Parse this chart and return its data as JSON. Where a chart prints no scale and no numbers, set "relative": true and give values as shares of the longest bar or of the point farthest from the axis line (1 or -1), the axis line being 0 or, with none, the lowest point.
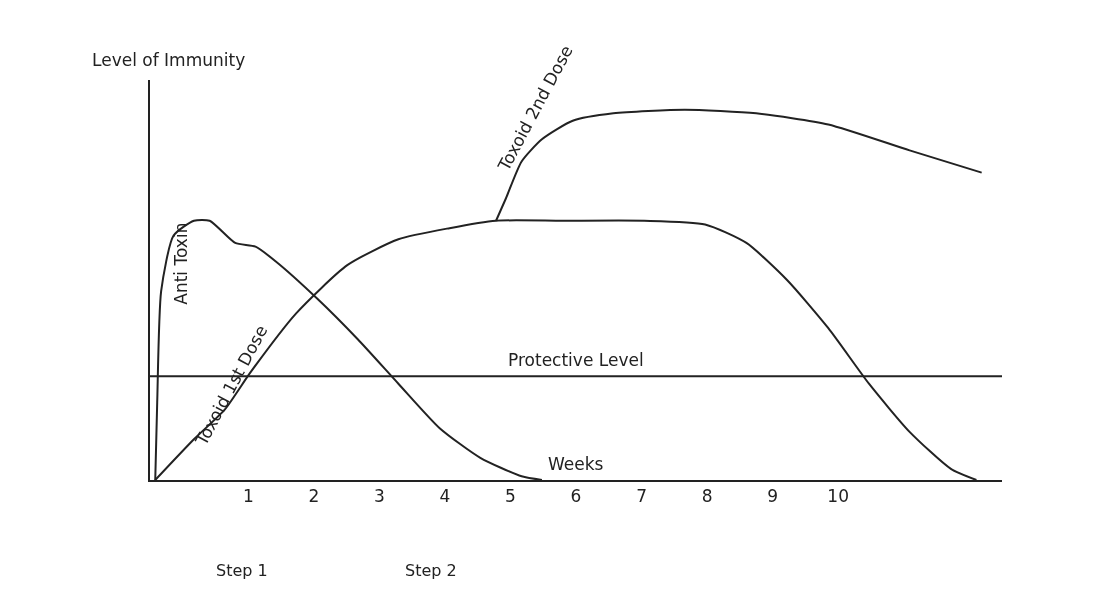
{
  "chart_data": {
    "type": "line",
    "relative": true,
    "xlabel": "Weeks",
    "ylabel": "Level of Immunity",
    "xlim": [
      -0.5,
      12.5
    ],
    "xticks": [
      1,
      2,
      3,
      4,
      5,
      6,
      7,
      8,
      9,
      10
    ],
    "legend": false,
    "marker": "none",
    "line_style": "solid",
    "series": [
      {
        "name": "Anti Toxin",
        "color": "#222222",
        "x": [
          -0.42,
          -0.39,
          -0.33,
          -0.14,
          0.17,
          0.41,
          0.8,
          1.11,
          1.42,
          2.05,
          2.67,
          3.29,
          3.92,
          4.54,
          5.17,
          5.48
        ],
        "values": [
          0,
          0.21,
          0.51,
          0.66,
          0.7,
          0.7,
          0.64,
          0.63,
          0.59,
          0.49,
          0.38,
          0.26,
          0.14,
          0.06,
          0.01,
          0
        ]
      },
      {
        "name": "Toxoid 1st Dose",
        "color": "#222222",
        "x": [
          -0.42,
          0.17,
          0.64,
          1.03,
          1.73,
          2.51,
          3.29,
          4.07,
          4.78,
          5.79,
          7.04,
          7.97,
          8.6,
          9.22,
          9.85,
          10.47,
          11.09,
          11.72,
          12.11
        ],
        "values": [
          0,
          0.11,
          0.19,
          0.29,
          0.45,
          0.58,
          0.65,
          0.68,
          0.7,
          0.7,
          0.7,
          0.69,
          0.64,
          0.54,
          0.41,
          0.26,
          0.13,
          0.03,
          0
        ]
      },
      {
        "name": "Toxoid 2nd Dose",
        "color": "#222222",
        "x": [
          4.78,
          4.93,
          5.17,
          5.48,
          5.95,
          6.57,
          7.66,
          8.75,
          9.85,
          11.09,
          12.19
        ],
        "values": [
          0.7,
          0.76,
          0.86,
          0.92,
          0.97,
          0.99,
          1.0,
          0.99,
          0.96,
          0.89,
          0.83
        ]
      }
    ],
    "ref_lines": [
      {
        "axis": "y",
        "value": 0.28,
        "label": "Protective Level",
        "color": "#222222"
      }
    ],
    "annotations": [
      "Step 1",
      "Step 2"
    ]
  }
}
